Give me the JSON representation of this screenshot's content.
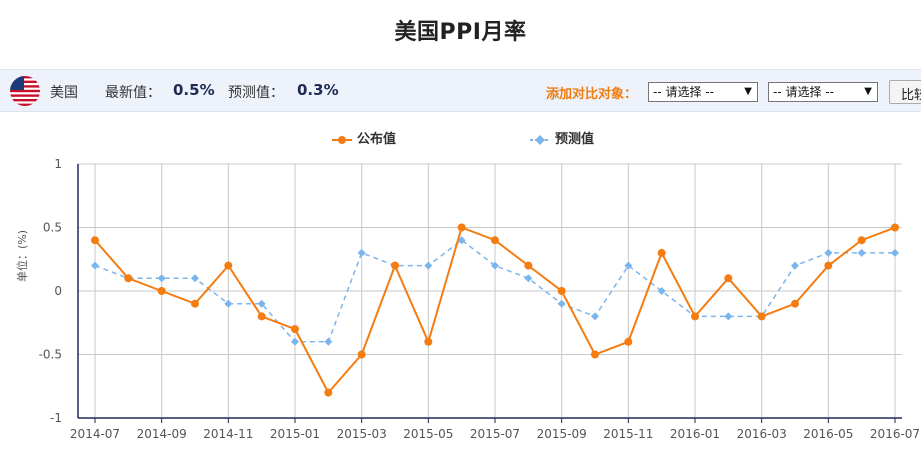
{
  "page": {
    "title": "美国PPI月率"
  },
  "info_bar": {
    "country": "美国",
    "latest_label": "最新值：",
    "latest_value": "0.5%",
    "forecast_label": "预测值：",
    "forecast_value": "0.3%",
    "compare_label": "添加对比对象：",
    "select1": "-- 请选择 --",
    "select2": "-- 请选择 --",
    "compare_button": "比较"
  },
  "colors": {
    "actual": "#f57c10",
    "forecast": "#7cb5ec",
    "axis": "#1f2a55",
    "grid": "#c8c8c8",
    "accent": "#f07d12"
  },
  "chart_data": {
    "type": "line",
    "title": "美国PPI月率",
    "ylabel": "单位：(%)",
    "xlabel": "",
    "ylim": [
      -1,
      1
    ],
    "yticks": [
      "1",
      "0.5",
      "0",
      "-0.5",
      "-1"
    ],
    "x_tick_labels": [
      "2014-07",
      "2014-09",
      "2014-11",
      "2015-01",
      "2015-03",
      "2015-05",
      "2015-07",
      "2015-09",
      "2015-11",
      "2016-01",
      "2016-03",
      "2016-05",
      "2016-07"
    ],
    "legend_position": "top-center",
    "grid": true,
    "categories": [
      "2014-07",
      "2014-08",
      "2014-09",
      "2014-10",
      "2014-11",
      "2014-12",
      "2015-01",
      "2015-02",
      "2015-03",
      "2015-04",
      "2015-05",
      "2015-06",
      "2015-07",
      "2015-08",
      "2015-09",
      "2015-10",
      "2015-11",
      "2015-12",
      "2016-01",
      "2016-02",
      "2016-03",
      "2016-04",
      "2016-05",
      "2016-06",
      "2016-07"
    ],
    "series": [
      {
        "name": "公布值",
        "style": "solid",
        "marker": "circle",
        "values": [
          0.4,
          0.1,
          0.0,
          -0.1,
          0.2,
          -0.2,
          -0.3,
          -0.8,
          -0.5,
          0.2,
          -0.4,
          0.5,
          0.4,
          0.2,
          0.0,
          -0.5,
          -0.4,
          0.3,
          -0.2,
          0.1,
          -0.2,
          -0.1,
          0.2,
          0.4,
          0.5
        ]
      },
      {
        "name": "预测值",
        "style": "dashed",
        "marker": "diamond",
        "values": [
          0.2,
          0.1,
          0.1,
          0.1,
          -0.1,
          -0.1,
          -0.4,
          -0.4,
          0.3,
          0.2,
          0.2,
          0.4,
          0.2,
          0.1,
          -0.1,
          -0.2,
          0.2,
          0.0,
          -0.2,
          -0.2,
          -0.2,
          0.2,
          0.3,
          0.3,
          0.3
        ]
      }
    ]
  }
}
